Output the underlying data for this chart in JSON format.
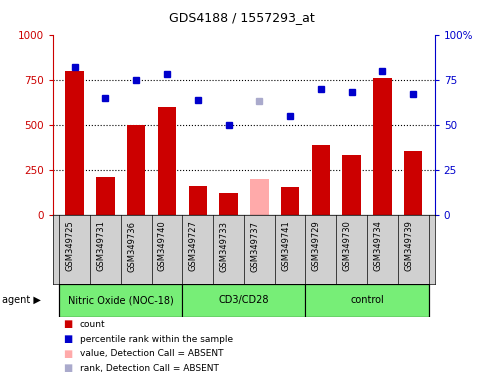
{
  "title": "GDS4188 / 1557293_at",
  "samples": [
    "GSM349725",
    "GSM349731",
    "GSM349736",
    "GSM349740",
    "GSM349727",
    "GSM349733",
    "GSM349737",
    "GSM349741",
    "GSM349729",
    "GSM349730",
    "GSM349734",
    "GSM349739"
  ],
  "bar_values": [
    800,
    210,
    500,
    600,
    160,
    120,
    200,
    155,
    390,
    335,
    760,
    355
  ],
  "bar_colors": [
    "#cc0000",
    "#cc0000",
    "#cc0000",
    "#cc0000",
    "#cc0000",
    "#cc0000",
    "#ffaaaa",
    "#cc0000",
    "#cc0000",
    "#cc0000",
    "#cc0000",
    "#cc0000"
  ],
  "rank_values": [
    82,
    65,
    75,
    78,
    64,
    50,
    63,
    55,
    70,
    68,
    80,
    67
  ],
  "rank_colors": [
    "#0000cc",
    "#0000cc",
    "#0000cc",
    "#0000cc",
    "#0000cc",
    "#0000cc",
    "#aaaacc",
    "#0000cc",
    "#0000cc",
    "#0000cc",
    "#0000cc",
    "#0000cc"
  ],
  "groups": [
    {
      "label": "Nitric Oxide (NOC-18)",
      "start": 0,
      "end": 4,
      "color": "#77ee77"
    },
    {
      "label": "CD3/CD28",
      "start": 4,
      "end": 8,
      "color": "#77ee77"
    },
    {
      "label": "control",
      "start": 8,
      "end": 12,
      "color": "#77ee77"
    }
  ],
  "ylim_left": [
    0,
    1000
  ],
  "ylim_right": [
    0,
    100
  ],
  "yticks_left": [
    0,
    250,
    500,
    750,
    1000
  ],
  "yticks_right": [
    0,
    25,
    50,
    75,
    100
  ],
  "ytick_labels_left": [
    "0",
    "250",
    "500",
    "750",
    "1000"
  ],
  "ytick_labels_right": [
    "0",
    "25",
    "50",
    "75",
    "100%"
  ],
  "left_axis_color": "#cc0000",
  "right_axis_color": "#0000cc",
  "plot_bg_color": "#ffffff",
  "sample_bg_color": "#d0d0d0",
  "grid_dotted_color": "#000000",
  "legend_items": [
    {
      "color": "#cc0000",
      "marker": "s",
      "label": "count"
    },
    {
      "color": "#0000cc",
      "marker": "s",
      "label": "percentile rank within the sample"
    },
    {
      "color": "#ffaaaa",
      "marker": "s",
      "label": "value, Detection Call = ABSENT"
    },
    {
      "color": "#aaaacc",
      "marker": "s",
      "label": "rank, Detection Call = ABSENT"
    }
  ]
}
